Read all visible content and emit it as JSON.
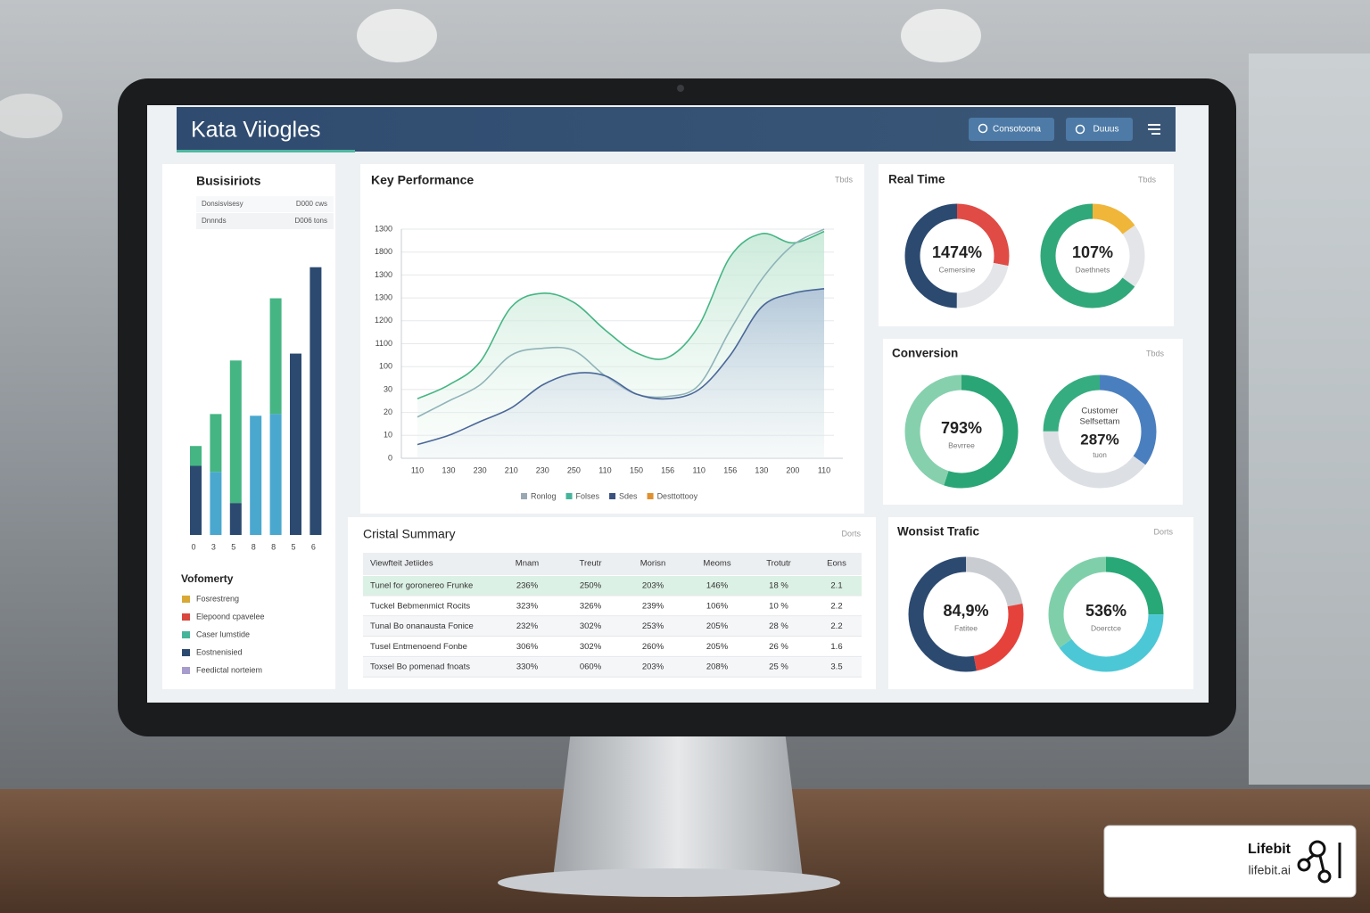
{
  "header": {
    "title": "Kata Viiogles",
    "buttons": [
      "Consotoona",
      "Duuus"
    ]
  },
  "left_panel": {
    "title": "Busisiriots",
    "mini_table": [
      [
        "Donsisvisesy",
        "D000 cws"
      ],
      [
        "Dnnnds",
        "D006 tons"
      ]
    ],
    "bars": {
      "type": "bar",
      "categories": [
        "0",
        "3",
        "5",
        "8",
        "8",
        "5",
        "6"
      ],
      "ylim": [
        0,
        320
      ],
      "series": [
        {
          "colors": [
            "#2c4a70",
            "#4aa8cf",
            "#2c4a70",
            "#4aa8cf",
            "#4aa8cf",
            "#2c4a70",
            "#2c4a70"
          ],
          "values": [
            80,
            73,
            37,
            138,
            140,
            210,
            310
          ]
        },
        {
          "color": "#45b583",
          "values": [
            23,
            67,
            165,
            null,
            134,
            null,
            null
          ]
        }
      ]
    },
    "legend_title": "Vofomerty",
    "legend": [
      {
        "name": "Fosrestreng",
        "color": "#d8a935"
      },
      {
        "name": "Elepoond cpavelee",
        "color": "#d9473f"
      },
      {
        "name": "Caser lumstide",
        "color": "#45b59a"
      },
      {
        "name": "Eostnenisied",
        "color": "#2c4a70"
      },
      {
        "name": "Feedictal norteiem",
        "color": "#a79ccc"
      }
    ]
  },
  "performance": {
    "title": "Key Performance",
    "tag": "Tbds",
    "chart": {
      "type": "line",
      "categories": [
        "110",
        "130",
        "230",
        "210",
        "230",
        "250",
        "110",
        "150",
        "156",
        "110",
        "156",
        "130",
        "200",
        "110"
      ],
      "ylim": [
        0,
        10
      ],
      "yticks": [
        {
          "value": 0,
          "label": "0"
        },
        {
          "value": 1,
          "label": "10"
        },
        {
          "value": 2,
          "label": "20"
        },
        {
          "value": 3,
          "label": "30"
        },
        {
          "value": 4,
          "label": "100"
        },
        {
          "value": 5,
          "label": "1100"
        },
        {
          "value": 6,
          "label": "1200"
        },
        {
          "value": 7,
          "label": "1300"
        },
        {
          "value": 8,
          "label": "1300"
        },
        {
          "value": 9,
          "label": "1800"
        },
        {
          "value": 10,
          "label": "1300"
        }
      ],
      "grid": true,
      "series": [
        {
          "color": "#45b583",
          "values": [
            2.6,
            3.2,
            4.2,
            6.6,
            7.2,
            6.8,
            5.6,
            4.6,
            4.4,
            5.8,
            8.8,
            9.8,
            9.4,
            9.9
          ]
        },
        {
          "color": "#8fb3b8",
          "values": [
            1.8,
            2.5,
            3.2,
            4.5,
            4.8,
            4.7,
            3.6,
            2.8,
            2.7,
            3.2,
            5.6,
            7.8,
            9.3,
            10
          ]
        },
        {
          "color": "#4a6798",
          "values": [
            0.6,
            1.0,
            1.6,
            2.2,
            3.2,
            3.7,
            3.6,
            2.8,
            2.6,
            3.0,
            4.5,
            6.6,
            7.2,
            7.4
          ]
        }
      ],
      "legend": [
        {
          "name": "Ronlog",
          "color": "#9aa8b4"
        },
        {
          "name": "Folses",
          "color": "#45b59a"
        },
        {
          "name": "Sdes",
          "color": "#3b5280"
        },
        {
          "name": "Desttottooy",
          "color": "#e0902f"
        }
      ]
    }
  },
  "summary": {
    "title": "Cristal Summary",
    "tag": "Dorts",
    "columns": [
      "Viewfteit Jetiides",
      "Mnam",
      "Treutr",
      "Morisn",
      "Meoms",
      "Trotutr",
      "Eons"
    ],
    "rows": [
      [
        "Tunel for goronereo Frunke",
        "236%",
        "250%",
        "203%",
        "146%",
        "18 %",
        "2.1"
      ],
      [
        "Tuckel Bebmenmict Rocits",
        "323%",
        "326%",
        "239%",
        "106%",
        "10 %",
        "2.2"
      ],
      [
        "Tunal Bo onanausta Fonice",
        "232%",
        "302%",
        "253%",
        "205%",
        "28 %",
        "2.2"
      ],
      [
        "Tusel Entmenoend Fonbe",
        "306%",
        "302%",
        "260%",
        "205%",
        "26 %",
        "1.6"
      ],
      [
        "Toxsel Bo pomenad fnoats",
        "330%",
        "060%",
        "203%",
        "208%",
        "25 %",
        "3.5"
      ]
    ]
  },
  "donut_panels": [
    {
      "title": "Real Time",
      "tag": "Tbds",
      "donuts": [
        {
          "value_text": "1474%",
          "label": "Cemersine",
          "segments": [
            {
              "color": "#e04b45",
              "value": 28
            },
            {
              "color": "#e3e5e8",
              "value": 22
            },
            {
              "color": "#2c4a70",
              "value": 50
            }
          ]
        },
        {
          "value_text": "107%",
          "label": "Daethnets",
          "segments": [
            {
              "color": "#f0b63a",
              "value": 15
            },
            {
              "color": "#e3e5e8",
              "value": 20
            },
            {
              "color": "#31a87a",
              "value": 65
            }
          ]
        }
      ]
    },
    {
      "title": "Conversion",
      "tag": "Tbds",
      "donuts": [
        {
          "value_text": "793%",
          "label": "Bevrree",
          "segments": [
            {
              "color": "#2aa676",
              "value": 55
            },
            {
              "color": "#86d0ad",
              "value": 45
            }
          ]
        },
        {
          "heading": [
            "Customer",
            "Selfsettam"
          ],
          "value_text": "287%",
          "label": "tuon",
          "segments": [
            {
              "color": "#4a7fbf",
              "value": 35
            },
            {
              "color": "#dcdfe3",
              "value": 40
            },
            {
              "color": "#35ad80",
              "value": 25
            }
          ]
        }
      ]
    },
    {
      "title": "Wonsist Trafic",
      "tag": "Dorts",
      "donuts": [
        {
          "value_text": "84,9%",
          "label": "Fatitee",
          "segments": [
            {
              "color": "#c9cdd2",
              "value": 22
            },
            {
              "color": "#e5423c",
              "value": 25
            },
            {
              "color": "#2c4a70",
              "value": 53
            }
          ]
        },
        {
          "value_text": "536%",
          "label": "Doerctce",
          "segments": [
            {
              "color": "#28a877",
              "value": 25
            },
            {
              "color": "#4cc7d6",
              "value": 40
            },
            {
              "color": "#7fd0aa",
              "value": 35
            }
          ]
        }
      ]
    }
  ],
  "badge": {
    "name": "Lifebit",
    "url": "lifebit.ai"
  }
}
